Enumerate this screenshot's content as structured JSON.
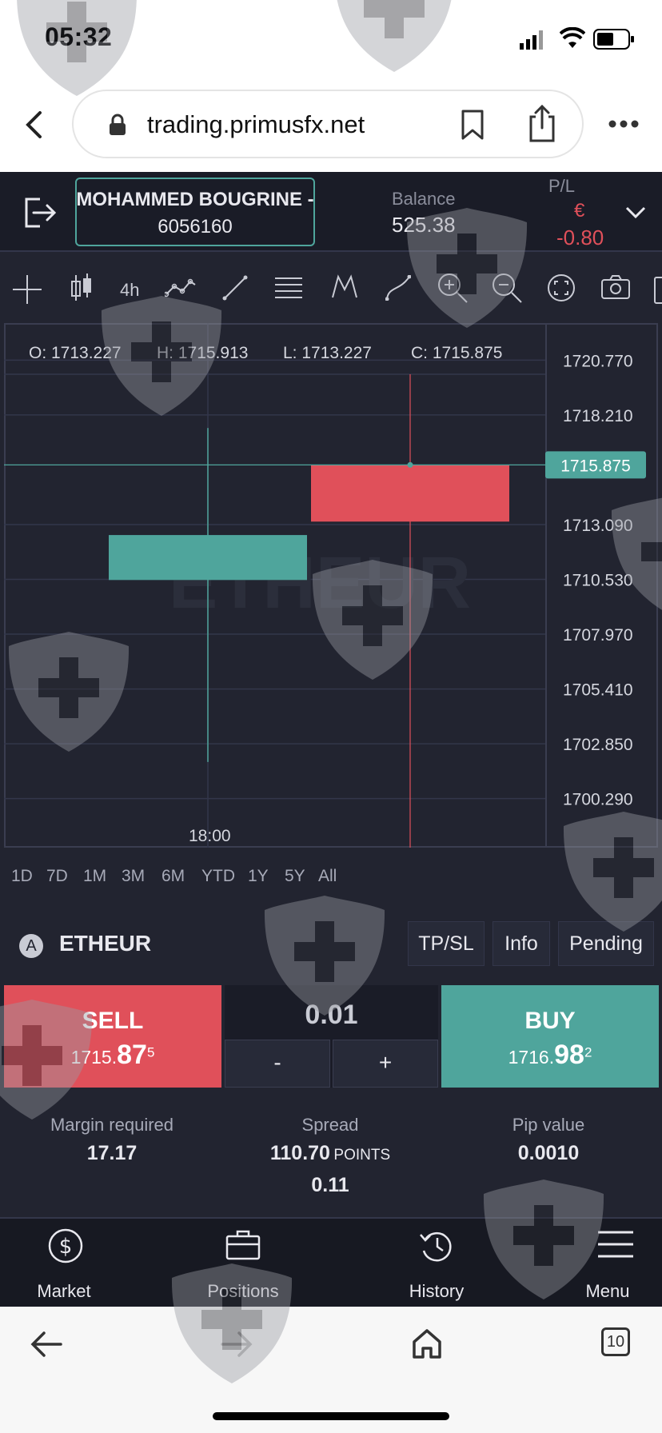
{
  "status_bar": {
    "time": "05:32"
  },
  "browser": {
    "url": "trading.primusfx.net",
    "tabs_count": "10"
  },
  "account": {
    "name": "MOHAMMED BOUGRINE -",
    "number": "6056160",
    "balance_label": "Balance",
    "balance_value": "525.38",
    "pl_label": "P/L",
    "pl_currency": "€",
    "pl_value": "-0.80"
  },
  "toolbar": {
    "timeframe": "4h"
  },
  "chart": {
    "ohlc": {
      "o": "O: 1713.227",
      "h": "H: 1715.913",
      "l": "L: 1713.227",
      "c": "C: 1715.875"
    },
    "watermark_symbol": "ETHEUR",
    "x_label": "18:00",
    "current_price": "1715.875",
    "current_price_color": "#4fa59c"
  },
  "chart_data": {
    "type": "candlestick",
    "x": [
      "",
      "18:00"
    ],
    "candles": [
      {
        "open": 1712.6,
        "high": 1717.6,
        "low": 1702.0,
        "close": 1710.5,
        "color": "#4fa59c"
      },
      {
        "open": 1713.227,
        "high": 1715.913,
        "low": 1713.227,
        "close": 1715.875,
        "color": "#e0505a"
      }
    ],
    "y_ticks": [
      1720.77,
      1718.21,
      1713.09,
      1710.53,
      1707.97,
      1705.41,
      1702.85,
      1700.29
    ],
    "y_tick_labels": [
      "1720.770",
      "1718.210",
      "1713.090",
      "1710.530",
      "1707.970",
      "1705.410",
      "1702.850",
      "1700.290"
    ],
    "ylim": [
      1698.0,
      1722.5
    ],
    "crosshair_price": 1715.875,
    "grid": true
  },
  "ranges": [
    "1D",
    "7D",
    "1M",
    "3M",
    "6M",
    "YTD",
    "1Y",
    "5Y",
    "All"
  ],
  "instrument": {
    "badge": "A",
    "symbol": "ETHEUR",
    "buttons": {
      "tpsl": "TP/SL",
      "info": "Info",
      "pending": "Pending"
    }
  },
  "trade": {
    "sell_label": "SELL",
    "sell_price_main": "1715.",
    "sell_price_big": "87",
    "sell_price_sup": "5",
    "buy_label": "BUY",
    "buy_price_main": "1716.",
    "buy_price_big": "98",
    "buy_price_sup": "2",
    "quantity": "0.01",
    "minus": "-",
    "plus": "+"
  },
  "stats": {
    "margin_label": "Margin required",
    "margin_value": "17.17",
    "spread_label": "Spread",
    "spread_points": "110.70",
    "spread_unit": "POINTS",
    "spread_value": "0.11",
    "pip_label": "Pip value",
    "pip_value": "0.0010"
  },
  "nav": {
    "market": "Market",
    "positions": "Positions",
    "history": "History",
    "menu": "Menu"
  }
}
